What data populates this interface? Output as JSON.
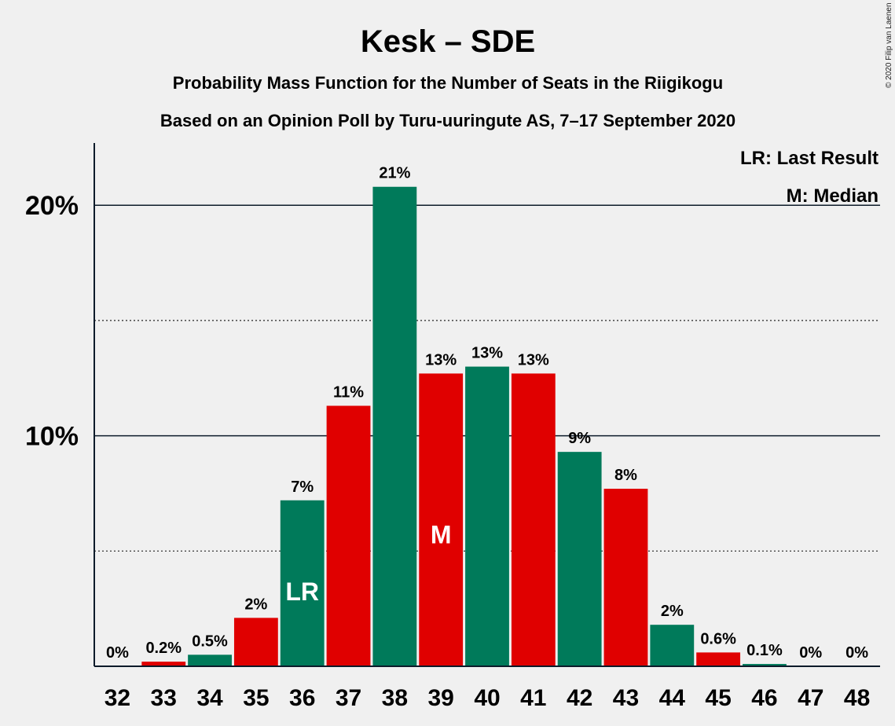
{
  "chart_data": {
    "type": "bar",
    "title": "Kesk – SDE",
    "subtitle": "Probability Mass Function for the Number of Seats in the Riigikogu",
    "subtitle2": "Based on an Opinion Poll by Turu-uuringute AS, 7–17 September 2020",
    "copyright": "© 2020 Filip van Laenen",
    "legend": {
      "last_result": "LR: Last Result",
      "median": "M: Median",
      "placement": "top-right"
    },
    "categories": [
      "32",
      "33",
      "34",
      "35",
      "36",
      "37",
      "38",
      "39",
      "40",
      "41",
      "42",
      "43",
      "44",
      "45",
      "46",
      "47",
      "48"
    ],
    "values": [
      0,
      0.2,
      0.5,
      2.1,
      7.2,
      11.3,
      20.8,
      12.7,
      13.0,
      12.7,
      9.3,
      7.7,
      1.8,
      0.6,
      0.1,
      0,
      0
    ],
    "labels": [
      "0%",
      "0.2%",
      "0.5%",
      "2%",
      "7%",
      "11%",
      "21%",
      "13%",
      "13%",
      "13%",
      "9%",
      "8%",
      "2%",
      "0.6%",
      "0.1%",
      "0%",
      "0%"
    ],
    "colors": [
      "#e00000",
      "#e00000",
      "#007a5a",
      "#e00000",
      "#007a5a",
      "#e00000",
      "#007a5a",
      "#e00000",
      "#007a5a",
      "#e00000",
      "#007a5a",
      "#e00000",
      "#007a5a",
      "#e00000",
      "#007a5a",
      "#e00000",
      "#007a5a"
    ],
    "markers": {
      "36": "LR",
      "39": "M"
    },
    "ylim": [
      0,
      22.7
    ],
    "yticks": [
      {
        "value": 10,
        "label": "10%"
      },
      {
        "value": 20,
        "label": "20%"
      }
    ],
    "minor_gridlines": [
      5,
      15
    ],
    "grid": true
  }
}
